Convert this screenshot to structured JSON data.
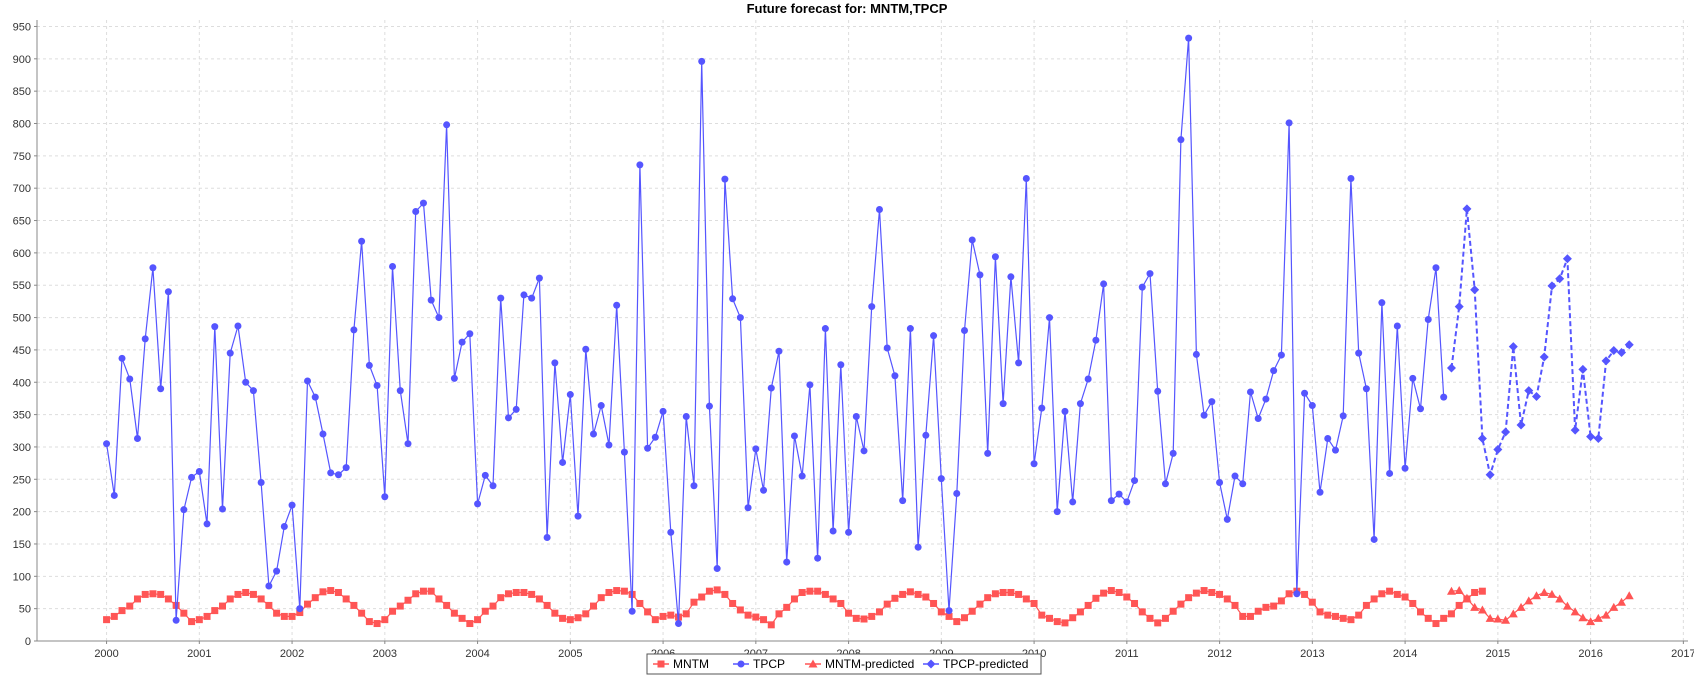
{
  "chart_data": {
    "type": "line",
    "title": "Future forecast for: MNTM,TPCP",
    "xlabel": "",
    "ylabel": "",
    "xlim": [
      1999.25,
      2017.05
    ],
    "ylim": [
      0,
      960
    ],
    "x_ticks": [
      2000,
      2001,
      2002,
      2003,
      2004,
      2005,
      2006,
      2007,
      2008,
      2009,
      2010,
      2011,
      2012,
      2013,
      2014,
      2015,
      2016,
      2017
    ],
    "y_ticks": [
      0,
      50,
      100,
      150,
      200,
      250,
      300,
      350,
      400,
      450,
      500,
      550,
      600,
      650,
      700,
      750,
      800,
      850,
      900,
      950
    ],
    "grid": true,
    "legend_position": "bottom-center",
    "series": [
      {
        "name": "MNTM",
        "color": "#ff5555",
        "marker": "square",
        "line_style": "solid",
        "x_start": 2000.0,
        "x_step": 0.08333,
        "values": [
          33,
          38,
          47,
          54,
          65,
          72,
          73,
          72,
          65,
          55,
          43,
          30,
          33,
          38,
          47,
          54,
          65,
          72,
          75,
          72,
          65,
          55,
          43,
          38,
          38,
          44,
          57,
          67,
          76,
          78,
          75,
          65,
          55,
          43,
          30,
          27,
          33,
          46,
          54,
          63,
          73,
          77,
          77,
          65,
          55,
          43,
          35,
          27,
          33,
          46,
          54,
          67,
          73,
          75,
          75,
          72,
          65,
          55,
          43,
          35,
          33,
          36,
          42,
          54,
          67,
          75,
          78,
          77,
          72,
          58,
          45,
          33,
          38,
          40,
          37,
          42,
          60,
          68,
          77,
          79,
          72,
          58,
          48,
          40,
          37,
          33,
          25,
          42,
          52,
          65,
          75,
          77,
          77,
          72,
          65,
          58,
          43,
          35,
          34,
          38,
          45,
          57,
          66,
          72,
          76,
          72,
          68,
          58,
          45,
          38,
          30,
          36,
          46,
          57,
          67,
          73,
          75,
          75,
          72,
          65,
          58,
          40,
          35,
          30,
          28,
          36,
          45,
          55,
          66,
          74,
          78,
          75,
          68,
          58,
          45,
          35,
          28,
          35,
          46,
          57,
          67,
          74,
          78,
          75,
          72,
          65,
          55,
          38,
          38,
          46,
          52,
          54,
          62,
          73,
          77,
          72,
          60,
          45,
          40,
          38,
          35,
          33,
          40,
          55,
          65,
          73,
          77,
          72,
          68,
          58,
          45,
          35,
          27,
          35,
          42,
          55,
          65,
          75,
          77
        ]
      },
      {
        "name": "TPCP",
        "color": "#5555ff",
        "marker": "circle",
        "line_style": "solid",
        "x_start": 2000.0,
        "x_step": 0.08333,
        "values": [
          305,
          225,
          437,
          405,
          313,
          467,
          577,
          390,
          540,
          32,
          203,
          253,
          262,
          181,
          486,
          204,
          445,
          487,
          400,
          387,
          245,
          85,
          108,
          177,
          210,
          50,
          402,
          377,
          320,
          260,
          257,
          268,
          481,
          618,
          426,
          395,
          223,
          579,
          387,
          305,
          664,
          677,
          527,
          500,
          798,
          406,
          462,
          475,
          212,
          256,
          240,
          530,
          345,
          358,
          535,
          530,
          561,
          160,
          430,
          276,
          381,
          193,
          451,
          320,
          364,
          303,
          519,
          292,
          46,
          736,
          298,
          315,
          355,
          168,
          27,
          347,
          240,
          896,
          363,
          112,
          714,
          529,
          500,
          206,
          297,
          233,
          391,
          448,
          122,
          317,
          255,
          396,
          128,
          483,
          170,
          427,
          168,
          347,
          294,
          517,
          667,
          453,
          410,
          217,
          483,
          145,
          318,
          472,
          251,
          47,
          228,
          480,
          620,
          566,
          290,
          594,
          367,
          563,
          430,
          715,
          274,
          360,
          500,
          200,
          355,
          215,
          367,
          405,
          465,
          552,
          217,
          227,
          215,
          248,
          547,
          568,
          386,
          243,
          290,
          775,
          932,
          443,
          349,
          370,
          245,
          188,
          255,
          243,
          385,
          344,
          374,
          418,
          442,
          801,
          73,
          383,
          364,
          230,
          313,
          295,
          348,
          715,
          445,
          390,
          157,
          523,
          259,
          487,
          267,
          406,
          359,
          497,
          577,
          377
        ]
      },
      {
        "name": "MNTM-predicted",
        "color": "#ff5555",
        "marker": "triangle",
        "line_style": "solid",
        "x_start": 2014.5,
        "x_step": 0.08333,
        "values": [
          77,
          78,
          66,
          52,
          48,
          35,
          34,
          32,
          42,
          52,
          62,
          70,
          75,
          72,
          65,
          54,
          45,
          36,
          30,
          35,
          40,
          52,
          60,
          70
        ]
      },
      {
        "name": "TPCP-predicted",
        "color": "#5555ff",
        "marker": "diamond",
        "line_style": "dashed",
        "x_start": 2014.5,
        "x_step": 0.08333,
        "values": [
          422,
          517,
          668,
          543,
          313,
          257,
          296,
          323,
          455,
          334,
          387,
          378,
          439,
          549,
          560,
          591,
          326,
          420,
          316,
          313,
          433,
          449,
          446,
          458
        ]
      }
    ]
  }
}
